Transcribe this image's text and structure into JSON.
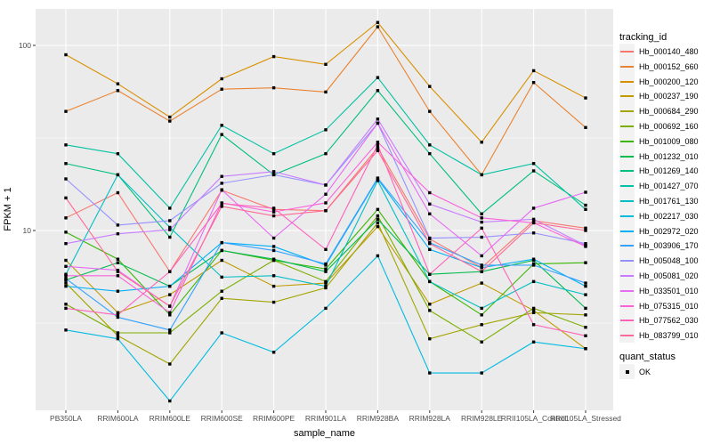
{
  "figure": {
    "x_axis_title": "sample_name",
    "y_axis_title": "FPKM + 1",
    "tracking_legend_title": "tracking_id",
    "quant_legend_title": "quant_status",
    "quant_legend_item": "OK"
  },
  "chart_data": {
    "type": "line",
    "title": "",
    "xlabel": "sample_name",
    "ylabel": "FPKM + 1",
    "y_scale": "log10",
    "ylim": [
      1.07,
      157
    ],
    "grid": true,
    "legend_position": "right",
    "panel_background": "#EBEBEB",
    "marker": "black-square",
    "x": [
      "PB350LA",
      "RRIM600LA",
      "RRIM600LE",
      "RRIM600SE",
      "RRIM600PE",
      "RRIM901LA",
      "RRIM928BA",
      "RRIM928LA",
      "RRIM928LE",
      "RRII105LA_Control",
      "RRII105LA_Stressed"
    ],
    "y_axis": {
      "ticks": [
        100,
        10
      ],
      "tick_labels": [
        "100",
        "10"
      ],
      "minor_gridlines": [
        31.62,
        3.162
      ]
    },
    "series": [
      {
        "name": "Hb_000140_480",
        "color": "#F8766D",
        "values": [
          11.7,
          16,
          6.0,
          16.5,
          13,
          12.8,
          28,
          9.0,
          6.3,
          11.3,
          10.3
        ]
      },
      {
        "name": "Hb_000152_660",
        "color": "#EA8331",
        "values": [
          44,
          57,
          39,
          58,
          59,
          56,
          126,
          44,
          20,
          63,
          36
        ]
      },
      {
        "name": "Hb_000200_120",
        "color": "#D89000",
        "values": [
          89,
          62,
          41,
          66,
          87,
          79,
          133,
          60,
          30,
          73,
          52
        ]
      },
      {
        "name": "Hb_000237_190",
        "color": "#C09B00",
        "values": [
          6.9,
          3.6,
          4.5,
          6.9,
          5.0,
          5.2,
          10.5,
          4.0,
          5.2,
          3.7,
          2.3
        ]
      },
      {
        "name": "Hb_000684_290",
        "color": "#A3A500",
        "values": [
          5.2,
          2.7,
          1.9,
          4.3,
          4.1,
          4.9,
          11,
          2.6,
          3.1,
          3.6,
          3.5
        ]
      },
      {
        "name": "Hb_000692_160",
        "color": "#7CAE00",
        "values": [
          4.0,
          2.8,
          2.8,
          4.7,
          6.9,
          5.3,
          12,
          3.7,
          2.5,
          3.8,
          3.0
        ]
      },
      {
        "name": "Hb_001009_080",
        "color": "#39B600",
        "values": [
          9.8,
          7.0,
          3.5,
          7.8,
          6.9,
          6.2,
          13,
          5.3,
          3.5,
          6.6,
          6.7
        ]
      },
      {
        "name": "Hb_001232_010",
        "color": "#00BB4E",
        "values": [
          5.4,
          6.7,
          5.0,
          7.8,
          7.0,
          6.0,
          11.5,
          5.8,
          6.0,
          6.9,
          3.8
        ]
      },
      {
        "name": "Hb_001269_140",
        "color": "#00BF7D",
        "values": [
          23,
          20,
          9.2,
          33,
          20,
          26,
          57,
          26,
          12.3,
          21,
          13.7
        ]
      },
      {
        "name": "Hb_001427_070",
        "color": "#00C1A3",
        "values": [
          29,
          26,
          13.2,
          37,
          26,
          35,
          67,
          29,
          20,
          23,
          13
        ]
      },
      {
        "name": "Hb_001761_130",
        "color": "#00BFC4",
        "values": [
          5.8,
          20,
          10.4,
          5.6,
          5.7,
          5.0,
          18.6,
          5.3,
          3.8,
          5.3,
          4.5
        ]
      },
      {
        "name": "Hb_002217_030",
        "color": "#00BAE0",
        "values": [
          2.9,
          2.6,
          1.2,
          2.8,
          2.2,
          3.8,
          7.3,
          1.7,
          1.7,
          2.5,
          2.3
        ]
      },
      {
        "name": "Hb_002972_020",
        "color": "#00B0F6",
        "values": [
          5.0,
          4.7,
          5.0,
          8.6,
          8.2,
          6.5,
          19,
          7.9,
          6.3,
          7.0,
          5.0
        ]
      },
      {
        "name": "Hb_003906_170",
        "color": "#35A2FF",
        "values": [
          5.5,
          3.4,
          2.9,
          8.6,
          7.8,
          6.6,
          19.2,
          8.6,
          6.5,
          6.5,
          5.2
        ]
      },
      {
        "name": "Hb_005048_100",
        "color": "#9590FF",
        "values": [
          19,
          10.7,
          11.3,
          18,
          20,
          17.6,
          38,
          9.1,
          9.2,
          9.7,
          8.5
        ]
      },
      {
        "name": "Hb_005081_020",
        "color": "#C77CFF",
        "values": [
          8.5,
          9.6,
          10.1,
          19.6,
          20.8,
          17.6,
          40,
          13.9,
          11.1,
          11.5,
          8.3
        ]
      },
      {
        "name": "Hb_033501_010",
        "color": "#E76BF3",
        "values": [
          6.4,
          6.1,
          3.9,
          16.6,
          9.1,
          15.7,
          38,
          12.3,
          7.3,
          13.2,
          16.1
        ]
      },
      {
        "name": "Hb_075315_010",
        "color": "#FA62DB",
        "values": [
          5.7,
          5.7,
          3.6,
          14.1,
          12.6,
          14.1,
          30,
          16,
          11.7,
          11.0,
          8.2
        ]
      },
      {
        "name": "Hb_077562_030",
        "color": "#FF62BC",
        "values": [
          3.8,
          3.5,
          6.0,
          14.0,
          13.2,
          7.9,
          29,
          5.8,
          10.3,
          3.1,
          2.7
        ]
      },
      {
        "name": "Hb_083799_010",
        "color": "#FF6A98",
        "values": [
          15,
          6.0,
          3.9,
          13.5,
          12.0,
          12.8,
          27,
          8.5,
          6.0,
          11.0,
          10.0
        ]
      }
    ],
    "quant_status": {
      "label": "OK",
      "marker": "black-square"
    }
  }
}
